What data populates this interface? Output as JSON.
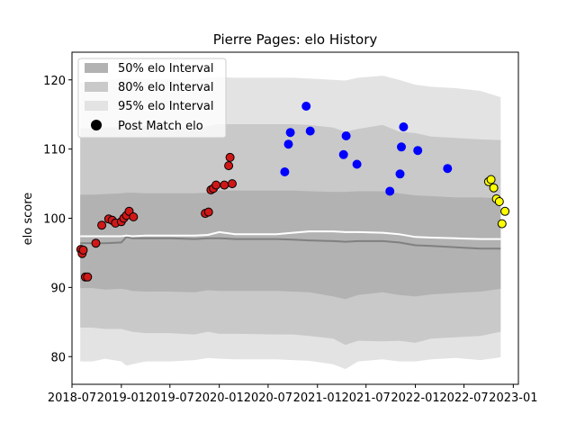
{
  "chart_data": {
    "type": "scatter",
    "title": "Pierre Pages: elo History",
    "xlabel": "",
    "ylabel": "elo score",
    "ylim": [
      76,
      124
    ],
    "xlim": [
      "2018-07-01",
      "2023-01-20"
    ],
    "x_ticks": [
      {
        "date": "2018-07-01",
        "label": "2018-07"
      },
      {
        "date": "2019-01-01",
        "label": "2019-01"
      },
      {
        "date": "2019-07-01",
        "label": "2019-07"
      },
      {
        "date": "2020-01-01",
        "label": "2020-01"
      },
      {
        "date": "2020-07-01",
        "label": "2020-07"
      },
      {
        "date": "2021-01-01",
        "label": "2021-01"
      },
      {
        "date": "2021-07-01",
        "label": "2021-07"
      },
      {
        "date": "2022-01-01",
        "label": "2022-01"
      },
      {
        "date": "2022-07-01",
        "label": "2022-07"
      },
      {
        "date": "2023-01-01",
        "label": "2023-01"
      }
    ],
    "y_ticks": [
      80,
      90,
      100,
      110,
      120
    ],
    "legend": {
      "placement": "top-left",
      "entries": [
        {
          "label": "50% elo Interval",
          "kind": "band",
          "color": "#b2b2b2"
        },
        {
          "label": "80% elo Interval",
          "kind": "band",
          "color": "#c9c9c9"
        },
        {
          "label": "95% elo Interval",
          "kind": "band",
          "color": "#e3e3e3"
        },
        {
          "label": "Post Match elo",
          "kind": "marker",
          "color": "#000000"
        }
      ]
    },
    "bands": {
      "dates": [
        "2018-08-01",
        "2018-09-15",
        "2018-11-01",
        "2019-01-01",
        "2019-01-20",
        "2019-02-10",
        "2019-04-01",
        "2019-07-01",
        "2019-10-01",
        "2019-11-20",
        "2020-01-01",
        "2020-03-01",
        "2020-08-01",
        "2020-10-01",
        "2020-12-01",
        "2021-03-01",
        "2021-04-15",
        "2021-06-01",
        "2021-09-01",
        "2021-11-01",
        "2022-01-01",
        "2022-03-01",
        "2022-06-01",
        "2022-09-01",
        "2022-11-15"
      ],
      "p95_upper": [
        119.6,
        119.6,
        120.0,
        120.1,
        120.2,
        120.1,
        120.1,
        120.1,
        120.0,
        120.3,
        120.4,
        120.3,
        120.3,
        120.3,
        120.2,
        120.0,
        119.9,
        120.3,
        120.6,
        120.0,
        119.3,
        119.0,
        118.8,
        118.4,
        117.5
      ],
      "p80_upper": [
        113.0,
        113.0,
        113.1,
        113.2,
        113.3,
        113.3,
        113.3,
        113.2,
        113.1,
        113.3,
        113.6,
        113.6,
        113.6,
        113.6,
        113.5,
        113.1,
        112.5,
        112.9,
        113.5,
        112.5,
        112.3,
        111.8,
        111.6,
        111.4,
        111.3
      ],
      "p50_upper": [
        103.4,
        103.4,
        103.5,
        103.6,
        103.7,
        103.7,
        103.6,
        103.6,
        103.6,
        103.7,
        104.0,
        104.0,
        104.0,
        104.0,
        103.9,
        103.8,
        103.8,
        103.9,
        103.9,
        103.6,
        103.3,
        103.2,
        103.0,
        103.0,
        102.9
      ],
      "p50_lower": [
        89.9,
        89.9,
        89.7,
        89.8,
        89.7,
        89.5,
        89.4,
        89.4,
        89.3,
        89.6,
        89.5,
        89.5,
        89.5,
        89.4,
        89.3,
        88.7,
        88.3,
        88.9,
        89.3,
        88.9,
        88.7,
        89.0,
        89.2,
        89.4,
        89.8
      ],
      "p80_lower": [
        84.2,
        84.2,
        84.0,
        84.0,
        83.8,
        83.6,
        83.4,
        83.4,
        83.2,
        83.6,
        83.3,
        83.3,
        83.2,
        83.2,
        83.0,
        82.6,
        81.7,
        82.3,
        82.2,
        82.3,
        82.0,
        82.6,
        82.8,
        83.0,
        83.6
      ],
      "p95_lower": [
        79.3,
        79.3,
        79.7,
        79.3,
        78.7,
        78.9,
        79.3,
        79.3,
        79.5,
        79.8,
        79.7,
        79.6,
        79.6,
        79.5,
        79.4,
        78.9,
        78.2,
        79.3,
        79.6,
        79.3,
        79.3,
        79.6,
        79.8,
        79.5,
        79.9
      ]
    },
    "median_line": {
      "color": "#808080",
      "dates": [
        "2018-08-01",
        "2018-09-15",
        "2018-11-01",
        "2019-01-01",
        "2019-01-20",
        "2019-02-10",
        "2019-04-01",
        "2019-07-01",
        "2019-10-01",
        "2019-11-20",
        "2020-01-01",
        "2020-03-01",
        "2020-08-01",
        "2020-10-01",
        "2020-12-01",
        "2021-03-01",
        "2021-04-15",
        "2021-06-01",
        "2021-09-01",
        "2021-11-01",
        "2022-01-01",
        "2022-03-01",
        "2022-06-01",
        "2022-09-01",
        "2022-11-15"
      ],
      "values": [
        96.4,
        96.4,
        96.4,
        96.5,
        97.3,
        97.1,
        97.1,
        97.1,
        97.0,
        97.1,
        97.1,
        97.0,
        97.0,
        96.9,
        96.8,
        96.7,
        96.6,
        96.7,
        96.7,
        96.5,
        96.1,
        96.0,
        95.8,
        95.6,
        95.6
      ]
    },
    "mean_line": {
      "color": "#ffffff",
      "dates": [
        "2018-08-01",
        "2018-09-15",
        "2018-11-01",
        "2019-01-01",
        "2019-01-20",
        "2019-02-10",
        "2019-04-01",
        "2019-07-01",
        "2019-10-01",
        "2019-11-20",
        "2020-01-01",
        "2020-03-01",
        "2020-08-01",
        "2020-10-01",
        "2020-12-01",
        "2021-03-01",
        "2021-04-15",
        "2021-06-01",
        "2021-09-01",
        "2021-11-01",
        "2022-01-01",
        "2022-03-01",
        "2022-06-01",
        "2022-09-01",
        "2022-11-15"
      ],
      "values": [
        97.4,
        97.4,
        97.4,
        97.4,
        97.5,
        97.4,
        97.5,
        97.5,
        97.5,
        97.6,
        98.0,
        97.7,
        97.7,
        97.9,
        98.1,
        98.1,
        98.0,
        98.0,
        97.9,
        97.7,
        97.3,
        97.2,
        97.1,
        97.0,
        97.0
      ]
    },
    "series": [
      {
        "color": "#d01818",
        "edge": "#000000",
        "points": [
          [
            "2018-08-03",
            95.5
          ],
          [
            "2018-08-08",
            94.9
          ],
          [
            "2018-08-12",
            95.4
          ],
          [
            "2018-08-20",
            91.5
          ],
          [
            "2018-08-28",
            91.5
          ],
          [
            "2018-09-28",
            96.4
          ],
          [
            "2018-10-20",
            99.0
          ],
          [
            "2018-11-15",
            99.9
          ],
          [
            "2018-11-28",
            99.7
          ],
          [
            "2018-12-10",
            99.3
          ],
          [
            "2019-01-01",
            99.5
          ],
          [
            "2019-01-10",
            100.0
          ],
          [
            "2019-01-20",
            100.4
          ],
          [
            "2019-01-30",
            101.0
          ],
          [
            "2019-02-15",
            100.2
          ],
          [
            "2019-11-10",
            100.7
          ],
          [
            "2019-11-22",
            100.9
          ],
          [
            "2019-12-01",
            104.1
          ],
          [
            "2019-12-10",
            104.3
          ],
          [
            "2019-12-20",
            104.8
          ],
          [
            "2020-01-20",
            104.8
          ],
          [
            "2020-02-05",
            107.6
          ],
          [
            "2020-02-10",
            108.8
          ],
          [
            "2020-02-18",
            105.0
          ]
        ]
      },
      {
        "color": "#0000ff",
        "edge": "#0000ff",
        "points": [
          [
            "2020-09-01",
            106.7
          ],
          [
            "2020-09-15",
            110.7
          ],
          [
            "2020-09-22",
            112.4
          ],
          [
            "2020-11-20",
            116.2
          ],
          [
            "2020-12-05",
            112.6
          ],
          [
            "2021-04-08",
            109.2
          ],
          [
            "2021-04-18",
            111.9
          ],
          [
            "2021-05-28",
            107.8
          ],
          [
            "2021-09-28",
            103.9
          ],
          [
            "2021-11-05",
            106.4
          ],
          [
            "2021-11-10",
            110.3
          ],
          [
            "2021-11-18",
            113.2
          ],
          [
            "2022-01-10",
            109.8
          ],
          [
            "2022-05-01",
            107.2
          ]
        ]
      },
      {
        "color": "#ffff00",
        "edge": "#000000",
        "points": [
          [
            "2022-10-01",
            105.3
          ],
          [
            "2022-10-10",
            105.6
          ],
          [
            "2022-10-20",
            104.4
          ],
          [
            "2022-10-30",
            102.8
          ],
          [
            "2022-11-10",
            102.4
          ],
          [
            "2022-11-20",
            99.2
          ],
          [
            "2022-12-01",
            101.0
          ]
        ]
      }
    ]
  }
}
